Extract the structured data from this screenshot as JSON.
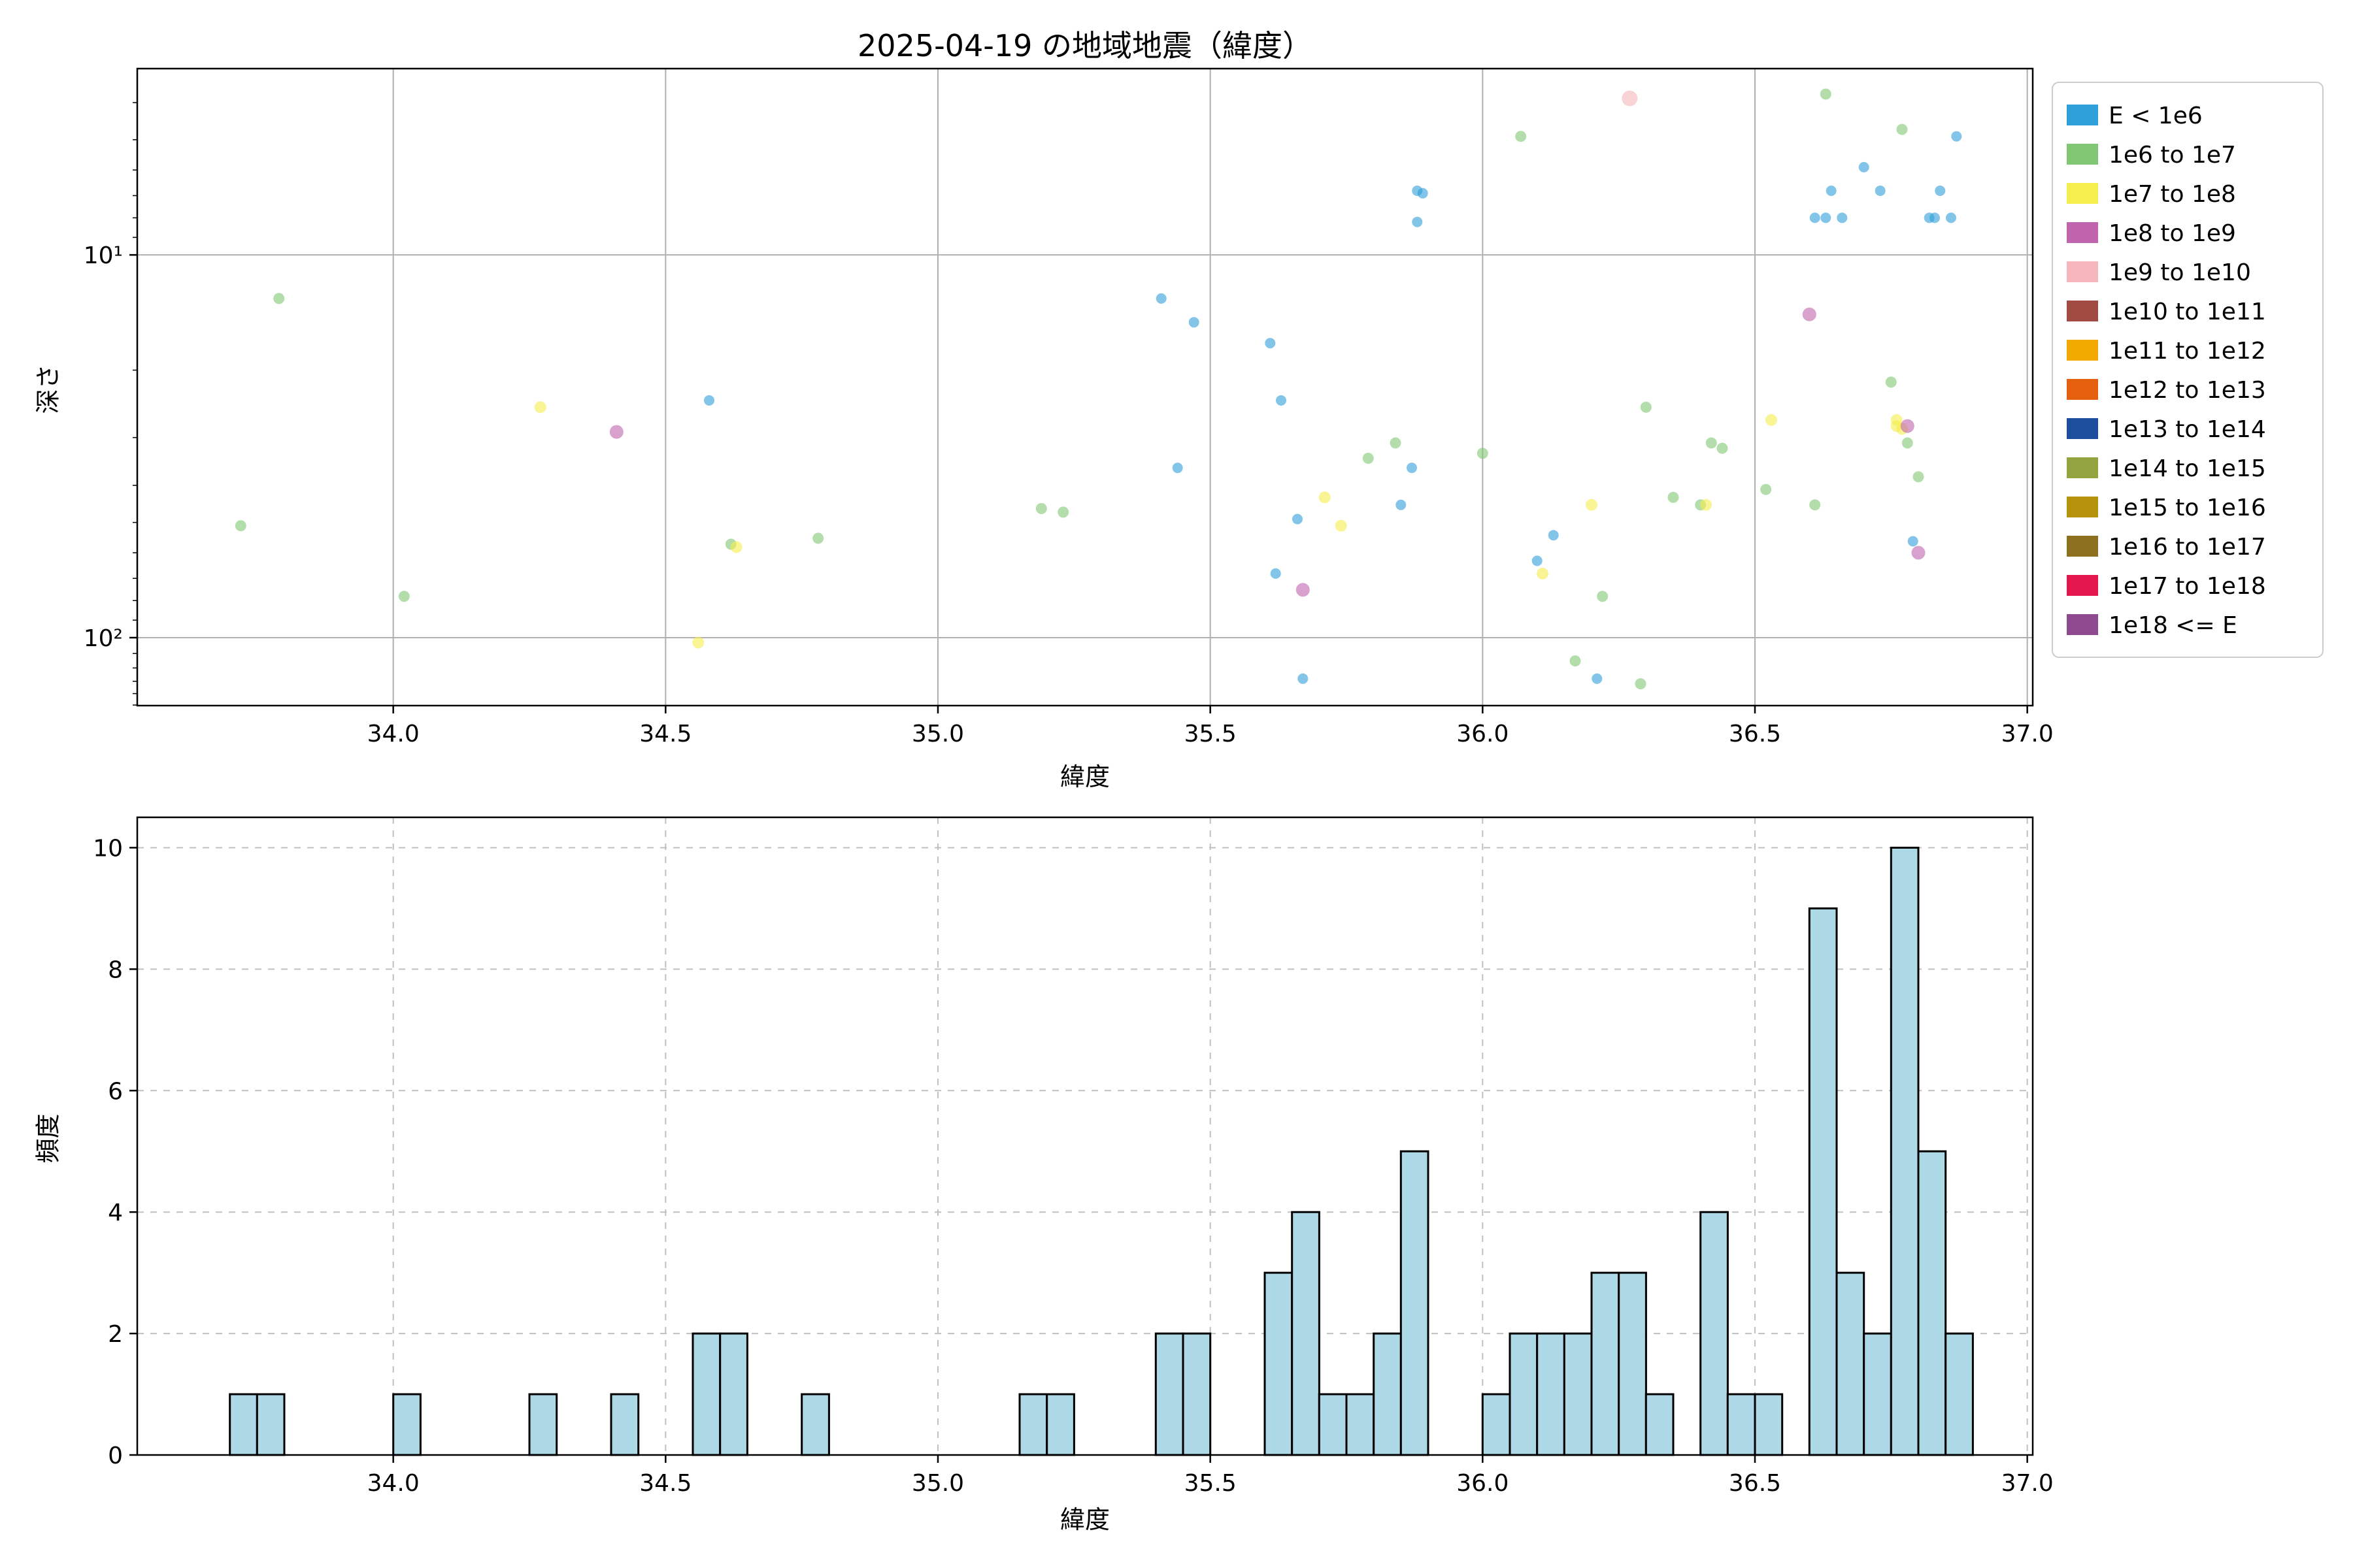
{
  "chart_data": [
    {
      "type": "scatter",
      "title": "2025-04-19 の地域地震（緯度）",
      "xlabel": "緯度",
      "ylabel": "深さ",
      "xlim": [
        33.53,
        37.01
      ],
      "depth_lim": [
        3.26,
        150.5
      ],
      "y_scale": "log-inverted-depth",
      "x_ticks": [
        34.0,
        34.5,
        35.0,
        35.5,
        36.0,
        36.5,
        37.0
      ],
      "y_ticks": [
        {
          "value": 10,
          "label": "10¹"
        },
        {
          "value": 100,
          "label": "10²"
        }
      ],
      "y_minor_ticks": [
        4,
        5,
        6,
        7,
        8,
        9,
        20,
        30,
        40,
        50,
        60,
        70,
        80,
        90,
        110,
        120,
        130,
        140,
        150
      ],
      "grid": "solid",
      "marker_alpha": 0.6,
      "marker_radius_by_cat": [
        8,
        8.5,
        9,
        10.5,
        12
      ],
      "legend": {
        "position": "outside-upper-right",
        "entries": [
          {
            "label": "E < 1e6",
            "color": "#2e9fd8"
          },
          {
            "label": "1e6 to 1e7",
            "color": "#80c673"
          },
          {
            "label": "1e7 to 1e8",
            "color": "#f5ee4e"
          },
          {
            "label": "1e8 to 1e9",
            "color": "#bf63ad"
          },
          {
            "label": "1e9 to 1e10",
            "color": "#f4b6bb"
          },
          {
            "label": "1e10 to 1e11",
            "color": "#a04a42"
          },
          {
            "label": "1e11 to 1e12",
            "color": "#f2a900"
          },
          {
            "label": "1e12 to 1e13",
            "color": "#e45f0e"
          },
          {
            "label": "1e13 to 1e14",
            "color": "#1d4e9e"
          },
          {
            "label": "1e14 to 1e15",
            "color": "#93a33f"
          },
          {
            "label": "1e15 to 1e16",
            "color": "#b5920c"
          },
          {
            "label": "1e16 to 1e17",
            "color": "#8c7020"
          },
          {
            "label": "1e17 to 1e18",
            "color": "#e4164e"
          },
          {
            "label": "1e18 <= E",
            "color": "#8f4a8f"
          }
        ]
      },
      "points_format": [
        "latitude",
        "depth_km",
        "category_index"
      ],
      "points": [
        [
          33.72,
          51,
          1
        ],
        [
          33.79,
          13,
          1
        ],
        [
          34.02,
          78,
          1
        ],
        [
          34.27,
          25,
          2
        ],
        [
          34.41,
          29,
          3
        ],
        [
          34.56,
          103,
          2
        ],
        [
          34.58,
          24,
          0
        ],
        [
          34.62,
          57,
          1
        ],
        [
          34.63,
          58,
          2
        ],
        [
          34.78,
          55,
          1
        ],
        [
          35.19,
          46,
          1
        ],
        [
          35.23,
          47,
          1
        ],
        [
          35.41,
          13,
          0
        ],
        [
          35.44,
          36,
          0
        ],
        [
          35.47,
          15,
          0
        ],
        [
          35.61,
          17,
          0
        ],
        [
          35.63,
          24,
          0
        ],
        [
          35.62,
          68,
          0
        ],
        [
          35.66,
          49,
          0
        ],
        [
          35.67,
          75,
          3
        ],
        [
          35.67,
          128,
          0
        ],
        [
          35.71,
          43,
          2
        ],
        [
          35.74,
          51,
          2
        ],
        [
          35.79,
          34,
          1
        ],
        [
          35.84,
          31,
          1
        ],
        [
          35.85,
          45,
          0
        ],
        [
          35.87,
          36,
          0
        ],
        [
          35.88,
          6.8,
          0
        ],
        [
          35.89,
          6.9,
          0
        ],
        [
          35.88,
          8.2,
          0
        ],
        [
          36.0,
          33,
          1
        ],
        [
          36.07,
          4.9,
          1
        ],
        [
          36.1,
          63,
          0
        ],
        [
          36.11,
          68,
          2
        ],
        [
          36.13,
          54,
          0
        ],
        [
          36.17,
          115,
          1
        ],
        [
          36.2,
          45,
          2
        ],
        [
          36.21,
          128,
          0
        ],
        [
          36.22,
          78,
          1
        ],
        [
          36.27,
          3.9,
          4
        ],
        [
          36.29,
          132,
          1
        ],
        [
          36.3,
          25,
          1
        ],
        [
          36.35,
          43,
          1
        ],
        [
          36.4,
          45,
          1
        ],
        [
          36.41,
          45,
          2
        ],
        [
          36.42,
          31,
          1
        ],
        [
          36.44,
          32,
          1
        ],
        [
          36.52,
          41,
          1
        ],
        [
          36.53,
          27,
          2
        ],
        [
          36.6,
          14.3,
          3
        ],
        [
          36.61,
          45,
          1
        ],
        [
          36.61,
          8.0,
          0
        ],
        [
          36.63,
          8.0,
          0
        ],
        [
          36.63,
          3.8,
          1
        ],
        [
          36.64,
          6.8,
          0
        ],
        [
          36.66,
          8.0,
          0
        ],
        [
          36.7,
          5.9,
          0
        ],
        [
          36.73,
          6.8,
          0
        ],
        [
          36.75,
          21.5,
          1
        ],
        [
          36.76,
          27,
          2
        ],
        [
          36.76,
          28,
          2
        ],
        [
          36.77,
          28.5,
          2
        ],
        [
          36.77,
          4.7,
          1
        ],
        [
          36.78,
          28,
          3
        ],
        [
          36.78,
          31,
          1
        ],
        [
          36.79,
          56,
          0
        ],
        [
          36.8,
          60,
          3
        ],
        [
          36.8,
          38,
          1
        ],
        [
          36.82,
          8.0,
          0
        ],
        [
          36.83,
          8.0,
          0
        ],
        [
          36.84,
          6.8,
          0
        ],
        [
          36.86,
          8.0,
          0
        ],
        [
          36.87,
          4.9,
          0
        ]
      ]
    },
    {
      "type": "bar",
      "title": "",
      "xlabel": "緯度",
      "ylabel": "頻度",
      "xlim": [
        33.53,
        37.01
      ],
      "ylim": [
        0,
        10.5
      ],
      "x_ticks": [
        34.0,
        34.5,
        35.0,
        35.5,
        36.0,
        36.5,
        37.0
      ],
      "y_ticks": [
        0,
        2,
        4,
        6,
        8,
        10
      ],
      "grid": "dashed",
      "bin_width": 0.05,
      "bar_color": "#add8e6",
      "bar_edge": "#000000",
      "bins": [
        {
          "start": 33.7,
          "count": 1
        },
        {
          "start": 33.75,
          "count": 1
        },
        {
          "start": 34.0,
          "count": 1
        },
        {
          "start": 34.25,
          "count": 1
        },
        {
          "start": 34.4,
          "count": 1
        },
        {
          "start": 34.55,
          "count": 2
        },
        {
          "start": 34.6,
          "count": 2
        },
        {
          "start": 34.75,
          "count": 1
        },
        {
          "start": 35.15,
          "count": 1
        },
        {
          "start": 35.2,
          "count": 1
        },
        {
          "start": 35.4,
          "count": 2
        },
        {
          "start": 35.45,
          "count": 2
        },
        {
          "start": 35.6,
          "count": 3
        },
        {
          "start": 35.65,
          "count": 4
        },
        {
          "start": 35.7,
          "count": 1
        },
        {
          "start": 35.75,
          "count": 1
        },
        {
          "start": 35.8,
          "count": 2
        },
        {
          "start": 35.85,
          "count": 5
        },
        {
          "start": 36.0,
          "count": 1
        },
        {
          "start": 36.05,
          "count": 2
        },
        {
          "start": 36.1,
          "count": 2
        },
        {
          "start": 36.15,
          "count": 2
        },
        {
          "start": 36.2,
          "count": 3
        },
        {
          "start": 36.25,
          "count": 3
        },
        {
          "start": 36.3,
          "count": 1
        },
        {
          "start": 36.4,
          "count": 4
        },
        {
          "start": 36.45,
          "count": 1
        },
        {
          "start": 36.5,
          "count": 1
        },
        {
          "start": 36.6,
          "count": 9
        },
        {
          "start": 36.65,
          "count": 3
        },
        {
          "start": 36.7,
          "count": 2
        },
        {
          "start": 36.75,
          "count": 10
        },
        {
          "start": 36.8,
          "count": 5
        },
        {
          "start": 36.85,
          "count": 2
        }
      ]
    }
  ]
}
